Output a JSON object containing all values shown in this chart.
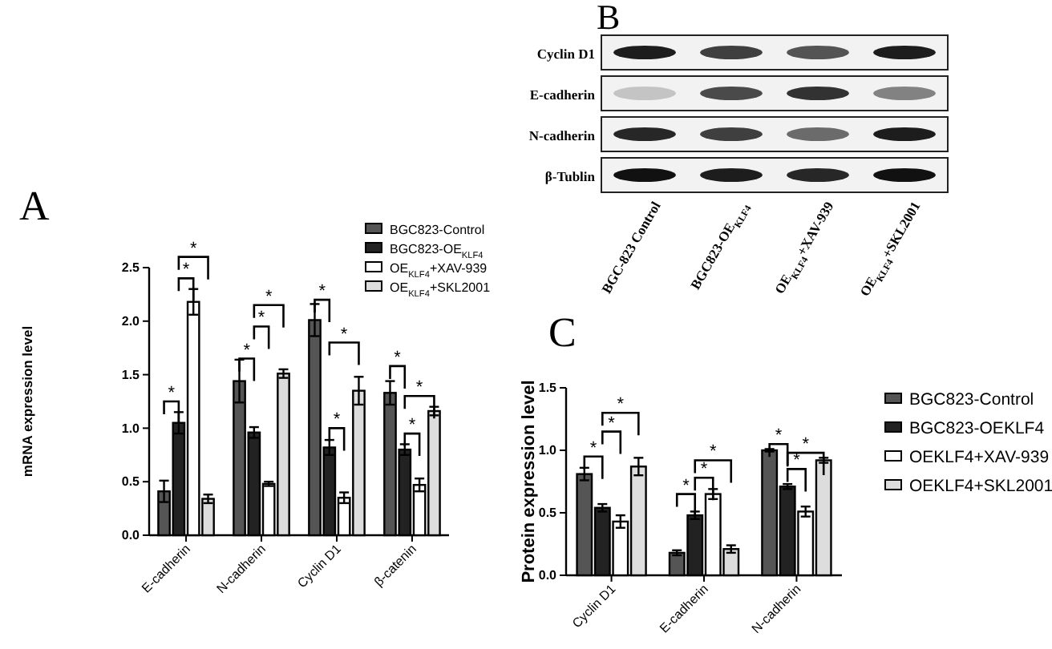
{
  "chart_data": [
    {
      "type": "bar",
      "title": "A",
      "ylabel": "mRNA expression level",
      "categories": [
        "E-cadherin",
        "N-cadherin",
        "Cyclin D1",
        "β-catenin"
      ],
      "ylim": [
        0,
        2.5
      ],
      "yticks": [
        {
          "value": 0,
          "label": "0.0"
        },
        {
          "value": 0.5,
          "label": "0.5"
        },
        {
          "value": 1,
          "label": "1.0"
        },
        {
          "value": 1.5,
          "label": "1.5"
        },
        {
          "value": 2,
          "label": "2.0"
        },
        {
          "value": 2.5,
          "label": "2.5"
        }
      ],
      "legend": "top right",
      "grid": false,
      "series": [
        {
          "name": "BGC823-Control",
          "color": "#555555",
          "values": [
            0.41,
            1.44,
            2.01,
            1.33
          ],
          "errors": [
            0.1,
            0.2,
            0.15,
            0.11
          ]
        },
        {
          "name": "BGC823-OE$_{KLF4}$",
          "color": "#222222",
          "values": [
            1.05,
            0.96,
            0.82,
            0.8
          ],
          "errors": [
            0.1,
            0.05,
            0.07,
            0.05
          ]
        },
        {
          "name": "OE$_{KLF4}$+XAV-939",
          "color": "#ffffff",
          "values": [
            2.18,
            0.48,
            0.35,
            0.47
          ],
          "errors": [
            0.12,
            0.02,
            0.05,
            0.06
          ]
        },
        {
          "name": "OE$_{KLF4}$+SKL2001",
          "color": "#dddddd",
          "values": [
            0.34,
            1.51,
            1.35,
            1.16
          ],
          "errors": [
            0.04,
            0.04,
            0.13,
            0.04
          ]
        }
      ],
      "annotations": [
        "*",
        "*",
        "*",
        "*",
        "*",
        "*",
        "*",
        "*",
        "*",
        "*",
        "*",
        "*"
      ]
    },
    {
      "type": "other",
      "title": "B",
      "y_categories": [
        "Cyclin D1",
        "E-cadherin",
        "N-cadherin",
        "β-Tublin"
      ],
      "categories": [
        "BGC-823 Control",
        "BGC823-OE$_{KLF4}$",
        "OE$_{KLF4}$+XAV-939",
        "OE$_{KLF4}$+SKL2001"
      ]
    },
    {
      "type": "bar",
      "title": "C",
      "ylabel": "Protein expression level",
      "categories": [
        "Cyclin D1",
        "E-cadherin",
        "N-cadherin"
      ],
      "ylim": [
        0,
        1.5
      ],
      "yticks": [
        {
          "value": 0,
          "label": "0.0"
        },
        {
          "value": 0.5,
          "label": "0.5"
        },
        {
          "value": 1,
          "label": "1.0"
        },
        {
          "value": 1.5,
          "label": "1.5"
        }
      ],
      "legend": "right",
      "grid": false,
      "series": [
        {
          "name": "BGC823-Control",
          "color": "#555555",
          "values": [
            0.81,
            0.18,
            1.0
          ],
          "errors": [
            0.05,
            0.02,
            0.01
          ]
        },
        {
          "name": "BGC823-OEKLF4",
          "color": "#222222",
          "values": [
            0.54,
            0.48,
            0.71
          ],
          "errors": [
            0.03,
            0.03,
            0.02
          ]
        },
        {
          "name": "OEKLF4+XAV-939",
          "color": "#ffffff",
          "values": [
            0.43,
            0.65,
            0.51
          ],
          "errors": [
            0.05,
            0.04,
            0.04
          ]
        },
        {
          "name": "OEKLF4+SKL2001",
          "color": "#dddddd",
          "values": [
            0.87,
            0.21,
            0.92
          ],
          "errors": [
            0.07,
            0.03,
            0.02
          ]
        }
      ],
      "annotations": [
        "*",
        "*",
        "*",
        "*",
        "*",
        "*",
        "*",
        "*",
        "*"
      ]
    }
  ]
}
